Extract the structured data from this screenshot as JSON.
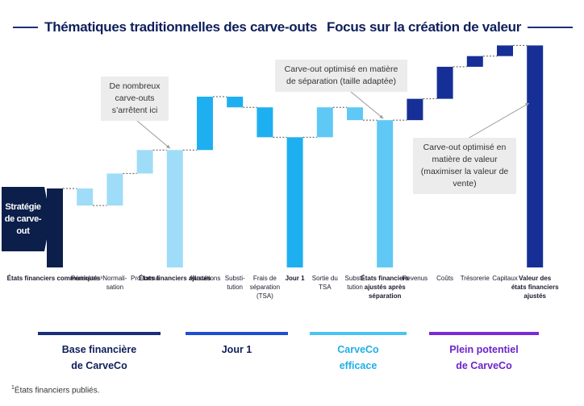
{
  "headers": {
    "left": "Thématiques traditionnelles des carve-outs",
    "right": "Focus sur la création de valeur"
  },
  "strategy_box": "Stratégie de carve-out",
  "callouts": {
    "many": "De nombreux carve-outs s’arrêtent ici",
    "separation": "Carve-out optimisé en matière de séparation (taille adaptée)",
    "value": "Carve-out optimisé en matière de valeur (maximiser la valeur de vente)"
  },
  "chart_data": {
    "type": "waterfall",
    "title": "",
    "xlabel": "",
    "ylabel": "",
    "ylim": [
      0,
      100
    ],
    "colors": {
      "dark_navy": "#0b1f4a",
      "light_blue": "#9fdcf7",
      "bright_blue": "#1eaff0",
      "sky_blue": "#5fc8f5",
      "royal_blue": "#162f96",
      "connector": "#555555"
    },
    "categories": [
      {
        "label": "États financiers communiqués¹",
        "type": "total",
        "value": 37,
        "color": "dark_navy",
        "bold": true
      },
      {
        "label": "Périmètre",
        "type": "delta",
        "value": -8,
        "color": "light_blue"
      },
      {
        "label": "Normali-\nsation",
        "type": "delta",
        "value": 15,
        "color": "light_blue"
      },
      {
        "label": "Pro forma",
        "type": "delta",
        "value": 11,
        "color": "light_blue"
      },
      {
        "label": "États financiers ajustés",
        "type": "total",
        "value": 55,
        "color": "light_blue",
        "bold": true
      },
      {
        "label": "Allocations",
        "type": "delta",
        "value": 25,
        "color": "bright_blue"
      },
      {
        "label": "Substi-\ntution",
        "type": "delta",
        "value": -5,
        "color": "bright_blue"
      },
      {
        "label": "Frais de\nséparation\n(TSA)",
        "type": "delta",
        "value": -14,
        "color": "bright_blue"
      },
      {
        "label": "Jour 1",
        "type": "total",
        "value": 61,
        "color": "bright_blue",
        "bold": true
      },
      {
        "label": "Sortie du\nTSA",
        "type": "delta",
        "value": 14,
        "color": "sky_blue"
      },
      {
        "label": "Substi-\ntution",
        "type": "delta",
        "value": -6,
        "color": "sky_blue"
      },
      {
        "label": "États financiers\najustés après\nséparation",
        "type": "total",
        "value": 69,
        "color": "sky_blue",
        "bold": true
      },
      {
        "label": "Revenus",
        "type": "delta",
        "value": 10,
        "color": "royal_blue"
      },
      {
        "label": "Coûts",
        "type": "delta",
        "value": 15,
        "color": "royal_blue"
      },
      {
        "label": "Trésorerie",
        "type": "delta",
        "value": 5,
        "color": "royal_blue"
      },
      {
        "label": "Capitaux",
        "type": "delta",
        "value": 5,
        "color": "royal_blue"
      },
      {
        "label": "Valeur des\nétats financiers\najustés",
        "type": "total",
        "value": 104,
        "color": "royal_blue",
        "bold": true
      }
    ]
  },
  "phases": [
    {
      "label": "Base financière\nde CarveCo",
      "color": "#1c2e78",
      "text_color": "#0f1f5c"
    },
    {
      "label": "Jour 1",
      "color": "#1f4fd0",
      "text_color": "#0f1f5c"
    },
    {
      "label": "CarveCo\nefficace",
      "color": "#4cc3f2",
      "text_color": "#22aee8"
    },
    {
      "label": "Plein potentiel\nde CarveCo",
      "color": "#7a2bd6",
      "text_color": "#6d23c8"
    }
  ],
  "footnote": {
    "marker": "1",
    "text": "États financiers publiés."
  }
}
